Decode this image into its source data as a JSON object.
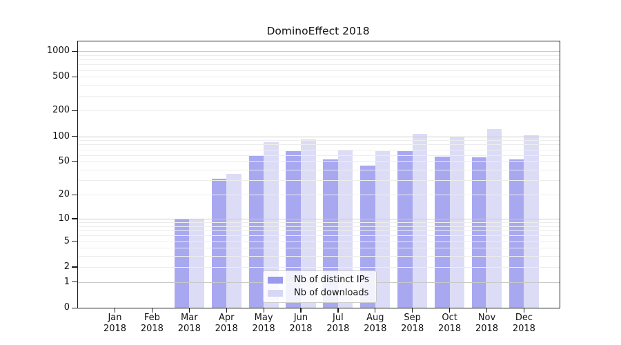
{
  "title": "DominoEffect 2018",
  "chart_data": {
    "type": "bar",
    "title": "DominoEffect 2018",
    "categories": [
      "Jan 2018",
      "Feb 2018",
      "Mar 2018",
      "Apr 2018",
      "May 2018",
      "Jun 2018",
      "Jul 2018",
      "Aug 2018",
      "Sep 2018",
      "Oct 2018",
      "Nov 2018",
      "Dec 2018"
    ],
    "series": [
      {
        "name": "Nb of distinct IPs",
        "color": "#9999ee",
        "values": [
          0,
          0,
          10,
          31,
          59,
          67,
          53,
          45,
          67,
          57,
          56,
          53
        ]
      },
      {
        "name": "Nb of downloads",
        "color": "#d6d6f6",
        "values": [
          0,
          0,
          10,
          36,
          86,
          92,
          70,
          67,
          107,
          100,
          121,
          103
        ]
      }
    ],
    "xlabel": "",
    "ylabel": "",
    "y_scale": "symlog-ln(1+v)",
    "y_ticks": [
      0,
      1,
      2,
      5,
      10,
      20,
      50,
      100,
      200,
      500,
      1000
    ],
    "ylim": [
      0,
      1330
    ],
    "grid": "both",
    "major_gridlines": [
      1,
      10,
      100,
      1000
    ],
    "minor_gridlines": [
      2,
      3,
      4,
      5,
      6,
      7,
      8,
      9,
      20,
      30,
      40,
      50,
      60,
      70,
      80,
      90,
      200,
      300,
      400,
      500,
      600,
      700,
      800,
      900
    ],
    "legend_position": "inside lower-center",
    "colors": {
      "grid_major": "#c9c9c9",
      "grid_minor": "#ededed",
      "axis": "#1a1a1a",
      "text": "#111111",
      "background": "#ffffff"
    }
  }
}
